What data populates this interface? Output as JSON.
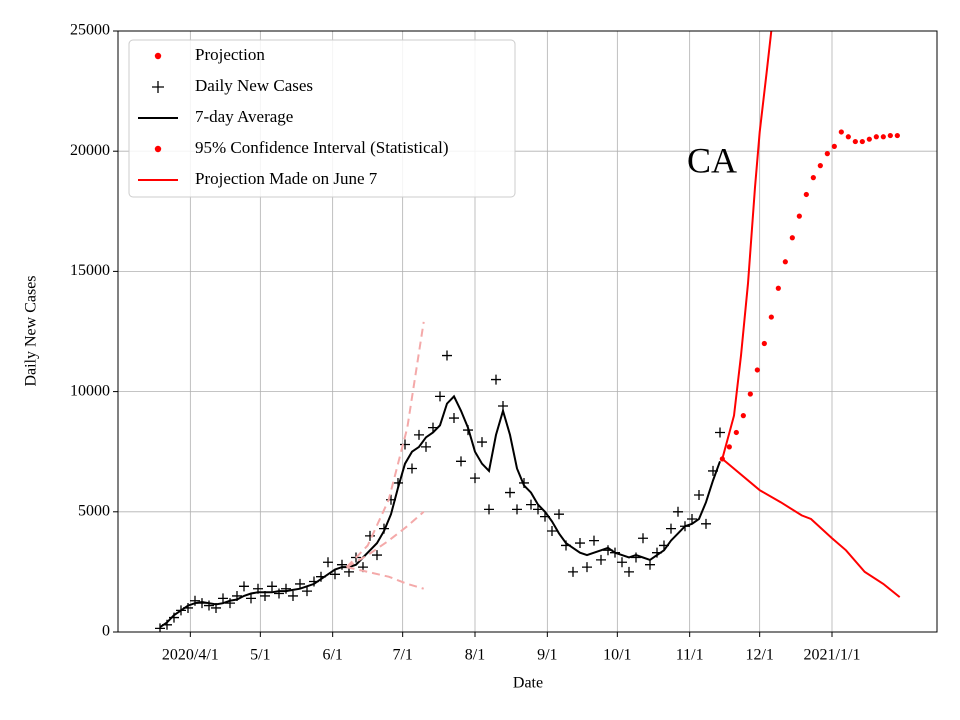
{
  "chart_data": {
    "type": "line",
    "annotation": "CA",
    "xlabel": "Date",
    "ylabel": "Daily New Cases",
    "xlim": [
      "2020-03-01",
      "2021-02-15"
    ],
    "xticks": [
      {
        "value": "2020-04-01",
        "label": "2020/4/1"
      },
      {
        "value": "2020-05-01",
        "label": "5/1"
      },
      {
        "value": "2020-06-01",
        "label": "6/1"
      },
      {
        "value": "2020-07-01",
        "label": "7/1"
      },
      {
        "value": "2020-08-01",
        "label": "8/1"
      },
      {
        "value": "2020-09-01",
        "label": "9/1"
      },
      {
        "value": "2020-10-01",
        "label": "10/1"
      },
      {
        "value": "2020-11-01",
        "label": "11/1"
      },
      {
        "value": "2020-12-01",
        "label": "12/1"
      },
      {
        "value": "2021-01-01",
        "label": "2021/1/1"
      }
    ],
    "ylim": [
      0,
      25000
    ],
    "yticks": [
      0,
      5000,
      10000,
      15000,
      20000,
      25000
    ],
    "grid": true,
    "legend": "upper left",
    "series": [
      {
        "name": "Projection",
        "color": "#ff0000",
        "style": "dots",
        "x": [
          "2020-11-15",
          "2020-11-18",
          "2020-11-21",
          "2020-11-24",
          "2020-11-27",
          "2020-11-30",
          "2020-12-03",
          "2020-12-06",
          "2020-12-09",
          "2020-12-12",
          "2020-12-15",
          "2020-12-18",
          "2020-12-21",
          "2020-12-24",
          "2020-12-27",
          "2020-12-30",
          "2021-01-02",
          "2021-01-05",
          "2021-01-08",
          "2021-01-11",
          "2021-01-14",
          "2021-01-17",
          "2021-01-20",
          "2021-01-23",
          "2021-01-26",
          "2021-01-29"
        ],
        "values": [
          7200,
          7700,
          8300,
          9000,
          9900,
          10900,
          12000,
          13100,
          14300,
          15400,
          16400,
          17300,
          18200,
          18900,
          19400,
          19900,
          20200,
          20800,
          20600,
          20400,
          20400,
          20500,
          20600,
          20600,
          20650,
          20650
        ]
      },
      {
        "name": "Daily New Cases",
        "color": "#000000",
        "style": "plus",
        "x": [
          "2020-03-19",
          "2020-03-22",
          "2020-03-25",
          "2020-03-28",
          "2020-03-31",
          "2020-04-03",
          "2020-04-06",
          "2020-04-09",
          "2020-04-12",
          "2020-04-15",
          "2020-04-18",
          "2020-04-21",
          "2020-04-24",
          "2020-04-27",
          "2020-04-30",
          "2020-05-03",
          "2020-05-06",
          "2020-05-09",
          "2020-05-12",
          "2020-05-15",
          "2020-05-18",
          "2020-05-21",
          "2020-05-24",
          "2020-05-27",
          "2020-05-30",
          "2020-06-02",
          "2020-06-05",
          "2020-06-08",
          "2020-06-11",
          "2020-06-14",
          "2020-06-17",
          "2020-06-20",
          "2020-06-23",
          "2020-06-26",
          "2020-06-29",
          "2020-07-02",
          "2020-07-05",
          "2020-07-08",
          "2020-07-11",
          "2020-07-14",
          "2020-07-17",
          "2020-07-20",
          "2020-07-23",
          "2020-07-26",
          "2020-07-29",
          "2020-08-01",
          "2020-08-04",
          "2020-08-07",
          "2020-08-10",
          "2020-08-13",
          "2020-08-16",
          "2020-08-19",
          "2020-08-22",
          "2020-08-25",
          "2020-08-28",
          "2020-08-31",
          "2020-09-03",
          "2020-09-06",
          "2020-09-09",
          "2020-09-12",
          "2020-09-15",
          "2020-09-18",
          "2020-09-21",
          "2020-09-24",
          "2020-09-27",
          "2020-09-30",
          "2020-10-03",
          "2020-10-06",
          "2020-10-09",
          "2020-10-12",
          "2020-10-15",
          "2020-10-18",
          "2020-10-21",
          "2020-10-24",
          "2020-10-27",
          "2020-10-30",
          "2020-11-02",
          "2020-11-05",
          "2020-11-08",
          "2020-11-11",
          "2020-11-14"
        ],
        "values": [
          150,
          300,
          600,
          900,
          1000,
          1300,
          1200,
          1100,
          1000,
          1400,
          1200,
          1500,
          1900,
          1400,
          1800,
          1500,
          1900,
          1600,
          1800,
          1500,
          2000,
          1700,
          2100,
          2300,
          2900,
          2400,
          2800,
          2500,
          3100,
          2700,
          4000,
          3200,
          4300,
          5500,
          6200,
          7800,
          6800,
          8200,
          7700,
          8500,
          9800,
          11500,
          8900,
          7100,
          8400,
          6400,
          7900,
          5100,
          10500,
          9400,
          5800,
          5100,
          6200,
          5300,
          5100,
          4800,
          4200,
          4900,
          3600,
          2500,
          3700,
          2700,
          3800,
          3000,
          3400,
          3300,
          2900,
          2500,
          3100,
          3900,
          2800,
          3300,
          3600,
          4300,
          5000,
          4400,
          4700,
          5700,
          4500,
          6700,
          8300
        ]
      },
      {
        "name": "7-day Average",
        "color": "#000000",
        "style": "line",
        "x": [
          "2020-03-19",
          "2020-03-22",
          "2020-03-25",
          "2020-03-28",
          "2020-03-31",
          "2020-04-03",
          "2020-04-06",
          "2020-04-09",
          "2020-04-12",
          "2020-04-15",
          "2020-04-18",
          "2020-04-21",
          "2020-04-24",
          "2020-04-27",
          "2020-04-30",
          "2020-05-03",
          "2020-05-06",
          "2020-05-09",
          "2020-05-12",
          "2020-05-15",
          "2020-05-18",
          "2020-05-21",
          "2020-05-24",
          "2020-05-27",
          "2020-05-30",
          "2020-06-02",
          "2020-06-05",
          "2020-06-08",
          "2020-06-11",
          "2020-06-14",
          "2020-06-17",
          "2020-06-20",
          "2020-06-23",
          "2020-06-26",
          "2020-06-29",
          "2020-07-02",
          "2020-07-05",
          "2020-07-08",
          "2020-07-11",
          "2020-07-14",
          "2020-07-17",
          "2020-07-20",
          "2020-07-23",
          "2020-07-26",
          "2020-07-29",
          "2020-08-01",
          "2020-08-04",
          "2020-08-07",
          "2020-08-10",
          "2020-08-13",
          "2020-08-16",
          "2020-08-19",
          "2020-08-22",
          "2020-08-25",
          "2020-08-28",
          "2020-08-31",
          "2020-09-03",
          "2020-09-06",
          "2020-09-09",
          "2020-09-12",
          "2020-09-15",
          "2020-09-18",
          "2020-09-21",
          "2020-09-24",
          "2020-09-27",
          "2020-09-30",
          "2020-10-03",
          "2020-10-06",
          "2020-10-09",
          "2020-10-12",
          "2020-10-15",
          "2020-10-18",
          "2020-10-21",
          "2020-10-24",
          "2020-10-27",
          "2020-10-30",
          "2020-11-02",
          "2020-11-05",
          "2020-11-08",
          "2020-11-11",
          "2020-11-14"
        ],
        "values": [
          200,
          400,
          700,
          900,
          1100,
          1200,
          1250,
          1200,
          1150,
          1200,
          1300,
          1350,
          1500,
          1600,
          1650,
          1650,
          1650,
          1700,
          1700,
          1750,
          1800,
          1900,
          2000,
          2200,
          2400,
          2600,
          2700,
          2700,
          2800,
          3100,
          3400,
          3700,
          4200,
          4900,
          6000,
          7000,
          7500,
          7700,
          8100,
          8300,
          8600,
          9500,
          9800,
          9200,
          8500,
          7500,
          7000,
          6700,
          8200,
          9200,
          8200,
          6800,
          6100,
          5800,
          5300,
          5000,
          4600,
          4100,
          3700,
          3500,
          3300,
          3200,
          3300,
          3400,
          3500,
          3300,
          3200,
          3100,
          3200,
          3100,
          3000,
          3200,
          3400,
          3800,
          4100,
          4400,
          4500,
          4700,
          5400,
          6300,
          7100
        ]
      },
      {
        "name": "95% Confidence Interval (Statistical)",
        "color": "#ff0000",
        "style": "bounds",
        "legend_style": "dots",
        "x_upper": [
          "2020-11-15",
          "2020-11-20",
          "2020-11-23",
          "2020-11-26",
          "2020-11-29",
          "2020-12-01",
          "2020-12-04",
          "2020-12-06"
        ],
        "upper": [
          7200,
          9000,
          11500,
          14500,
          18500,
          20800,
          23300,
          25000
        ],
        "x_lower": [
          "2020-11-15",
          "2020-12-01",
          "2020-12-10",
          "2020-12-19",
          "2020-12-23",
          "2021-01-01",
          "2021-01-07",
          "2021-01-15",
          "2021-01-23",
          "2021-01-30"
        ],
        "lower": [
          7200,
          5900,
          5400,
          4850,
          4700,
          3900,
          3400,
          2500,
          2000,
          1450
        ]
      },
      {
        "name": "Projection Made on June 7",
        "color": "#ff0000",
        "style": "dashed",
        "draw_color": "#f4a9a9",
        "x": [
          "2020-06-07",
          "2020-06-16",
          "2020-06-25",
          "2020-07-03",
          "2020-07-10"
        ],
        "upper": [
          2700,
          3600,
          5500,
          8500,
          12900
        ],
        "values": [
          2700,
          3200,
          3800,
          4400,
          5000
        ],
        "lower": [
          2700,
          2500,
          2300,
          2000,
          1800
        ]
      }
    ]
  }
}
